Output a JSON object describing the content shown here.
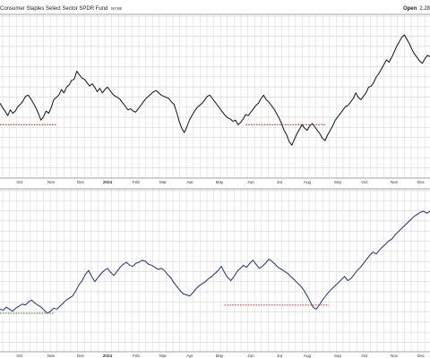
{
  "header": {
    "title": "Consumer Staples Select Sector SPDR Fund",
    "exchange": "NYSE",
    "open_label": "Open",
    "open_value": "2.28"
  },
  "colors": {
    "price_line": "#111111",
    "relative_line": "#1f2f7a",
    "red_dotted": "#c0392b",
    "green_dotted": "#2e8b2e",
    "grid": "#d9d9d9",
    "axis": "#888888"
  },
  "chart_data": [
    {
      "type": "line",
      "title": "Consumer Staples Select Sector SPDR Fund NYSE",
      "x_labels": [
        "Oct",
        "Nov",
        "Dec",
        "2024",
        "Feb",
        "Mar",
        "Apr",
        "May",
        "Jun",
        "Jul",
        "Aug",
        "Sep",
        "Oct",
        "Nov",
        "Dec"
      ],
      "ylim": [
        0,
        100
      ],
      "grid": true,
      "series": [
        {
          "values": [
            40,
            36,
            33,
            29,
            34,
            31,
            33,
            37,
            39,
            42,
            46,
            47,
            44,
            40,
            36,
            31,
            25,
            28,
            33,
            31,
            36,
            43,
            45,
            47,
            52,
            49,
            54,
            56,
            60,
            61,
            68,
            65,
            62,
            61,
            58,
            55,
            57,
            54,
            50,
            53,
            49,
            52,
            54,
            51,
            48,
            46,
            45,
            43,
            40,
            37,
            34,
            35,
            33,
            32,
            35,
            38,
            41,
            44,
            46,
            48,
            50,
            51,
            49,
            47,
            46,
            45,
            44,
            41,
            39,
            32,
            24,
            18,
            14,
            19,
            25,
            29,
            33,
            36,
            38,
            40,
            43,
            46,
            47,
            44,
            41,
            38,
            35,
            32,
            29,
            27,
            26,
            24,
            25,
            21,
            23,
            26,
            30,
            29,
            32,
            35,
            38,
            40,
            44,
            47,
            43,
            41,
            38,
            35,
            31,
            27,
            22,
            16,
            12,
            6,
            3,
            8,
            13,
            17,
            21,
            18,
            16,
            20,
            22,
            19,
            16,
            13,
            9,
            7,
            12,
            16,
            20,
            25,
            28,
            31,
            34,
            37,
            38,
            41,
            44,
            49,
            45,
            43,
            46,
            49,
            54,
            55,
            58,
            63,
            66,
            70,
            74,
            78,
            76,
            80,
            85,
            90,
            94,
            98,
            100,
            96,
            92,
            87,
            83,
            80,
            77,
            75,
            79,
            82,
            81
          ]
        }
      ],
      "reference_lines": [
        {
          "from_index": 0,
          "to_index": 22,
          "value": 21,
          "color": "red"
        },
        {
          "from_index": 96,
          "to_index": 127,
          "value": 21,
          "color": "red"
        }
      ]
    },
    {
      "type": "line",
      "x_labels": [
        "Oct",
        "Nov",
        "Dec",
        "2024",
        "Feb",
        "Mar",
        "Apr",
        "May",
        "Jun",
        "Jul",
        "Aug",
        "Sep",
        "Oct",
        "Nov",
        "Dec"
      ],
      "ylim": [
        0,
        100
      ],
      "grid": true,
      "series": [
        {
          "values": [
            4,
            3,
            6,
            4,
            2,
            5,
            7,
            9,
            8,
            11,
            13,
            10,
            8,
            6,
            3,
            0,
            2,
            5,
            4,
            7,
            10,
            13,
            15,
            17,
            22,
            28,
            32,
            38,
            42,
            36,
            31,
            35,
            39,
            42,
            44,
            40,
            37,
            41,
            45,
            48,
            50,
            47,
            46,
            49,
            50,
            52,
            51,
            48,
            47,
            45,
            43,
            44,
            42,
            38,
            35,
            30,
            26,
            22,
            19,
            18,
            17,
            20,
            24,
            27,
            29,
            31,
            34,
            36,
            39,
            42,
            46,
            40,
            35,
            32,
            36,
            41,
            44,
            47,
            45,
            49,
            52,
            48,
            44,
            46,
            49,
            53,
            51,
            48,
            45,
            43,
            41,
            39,
            36,
            33,
            30,
            27,
            23,
            18,
            12,
            6,
            4,
            8,
            13,
            17,
            21,
            24,
            27,
            30,
            33,
            36,
            32,
            34,
            38,
            42,
            45,
            49,
            53,
            57,
            60,
            58,
            62,
            65,
            68,
            71,
            73,
            77,
            80,
            83,
            86,
            89,
            92,
            95,
            97,
            99,
            100,
            98,
            100
          ]
        }
      ],
      "reference_lines": [
        {
          "from_index": 0,
          "to_index": 17,
          "value": 0,
          "color": "green"
        },
        {
          "from_index": 71,
          "to_index": 104,
          "value": 8,
          "color": "red"
        }
      ]
    }
  ]
}
